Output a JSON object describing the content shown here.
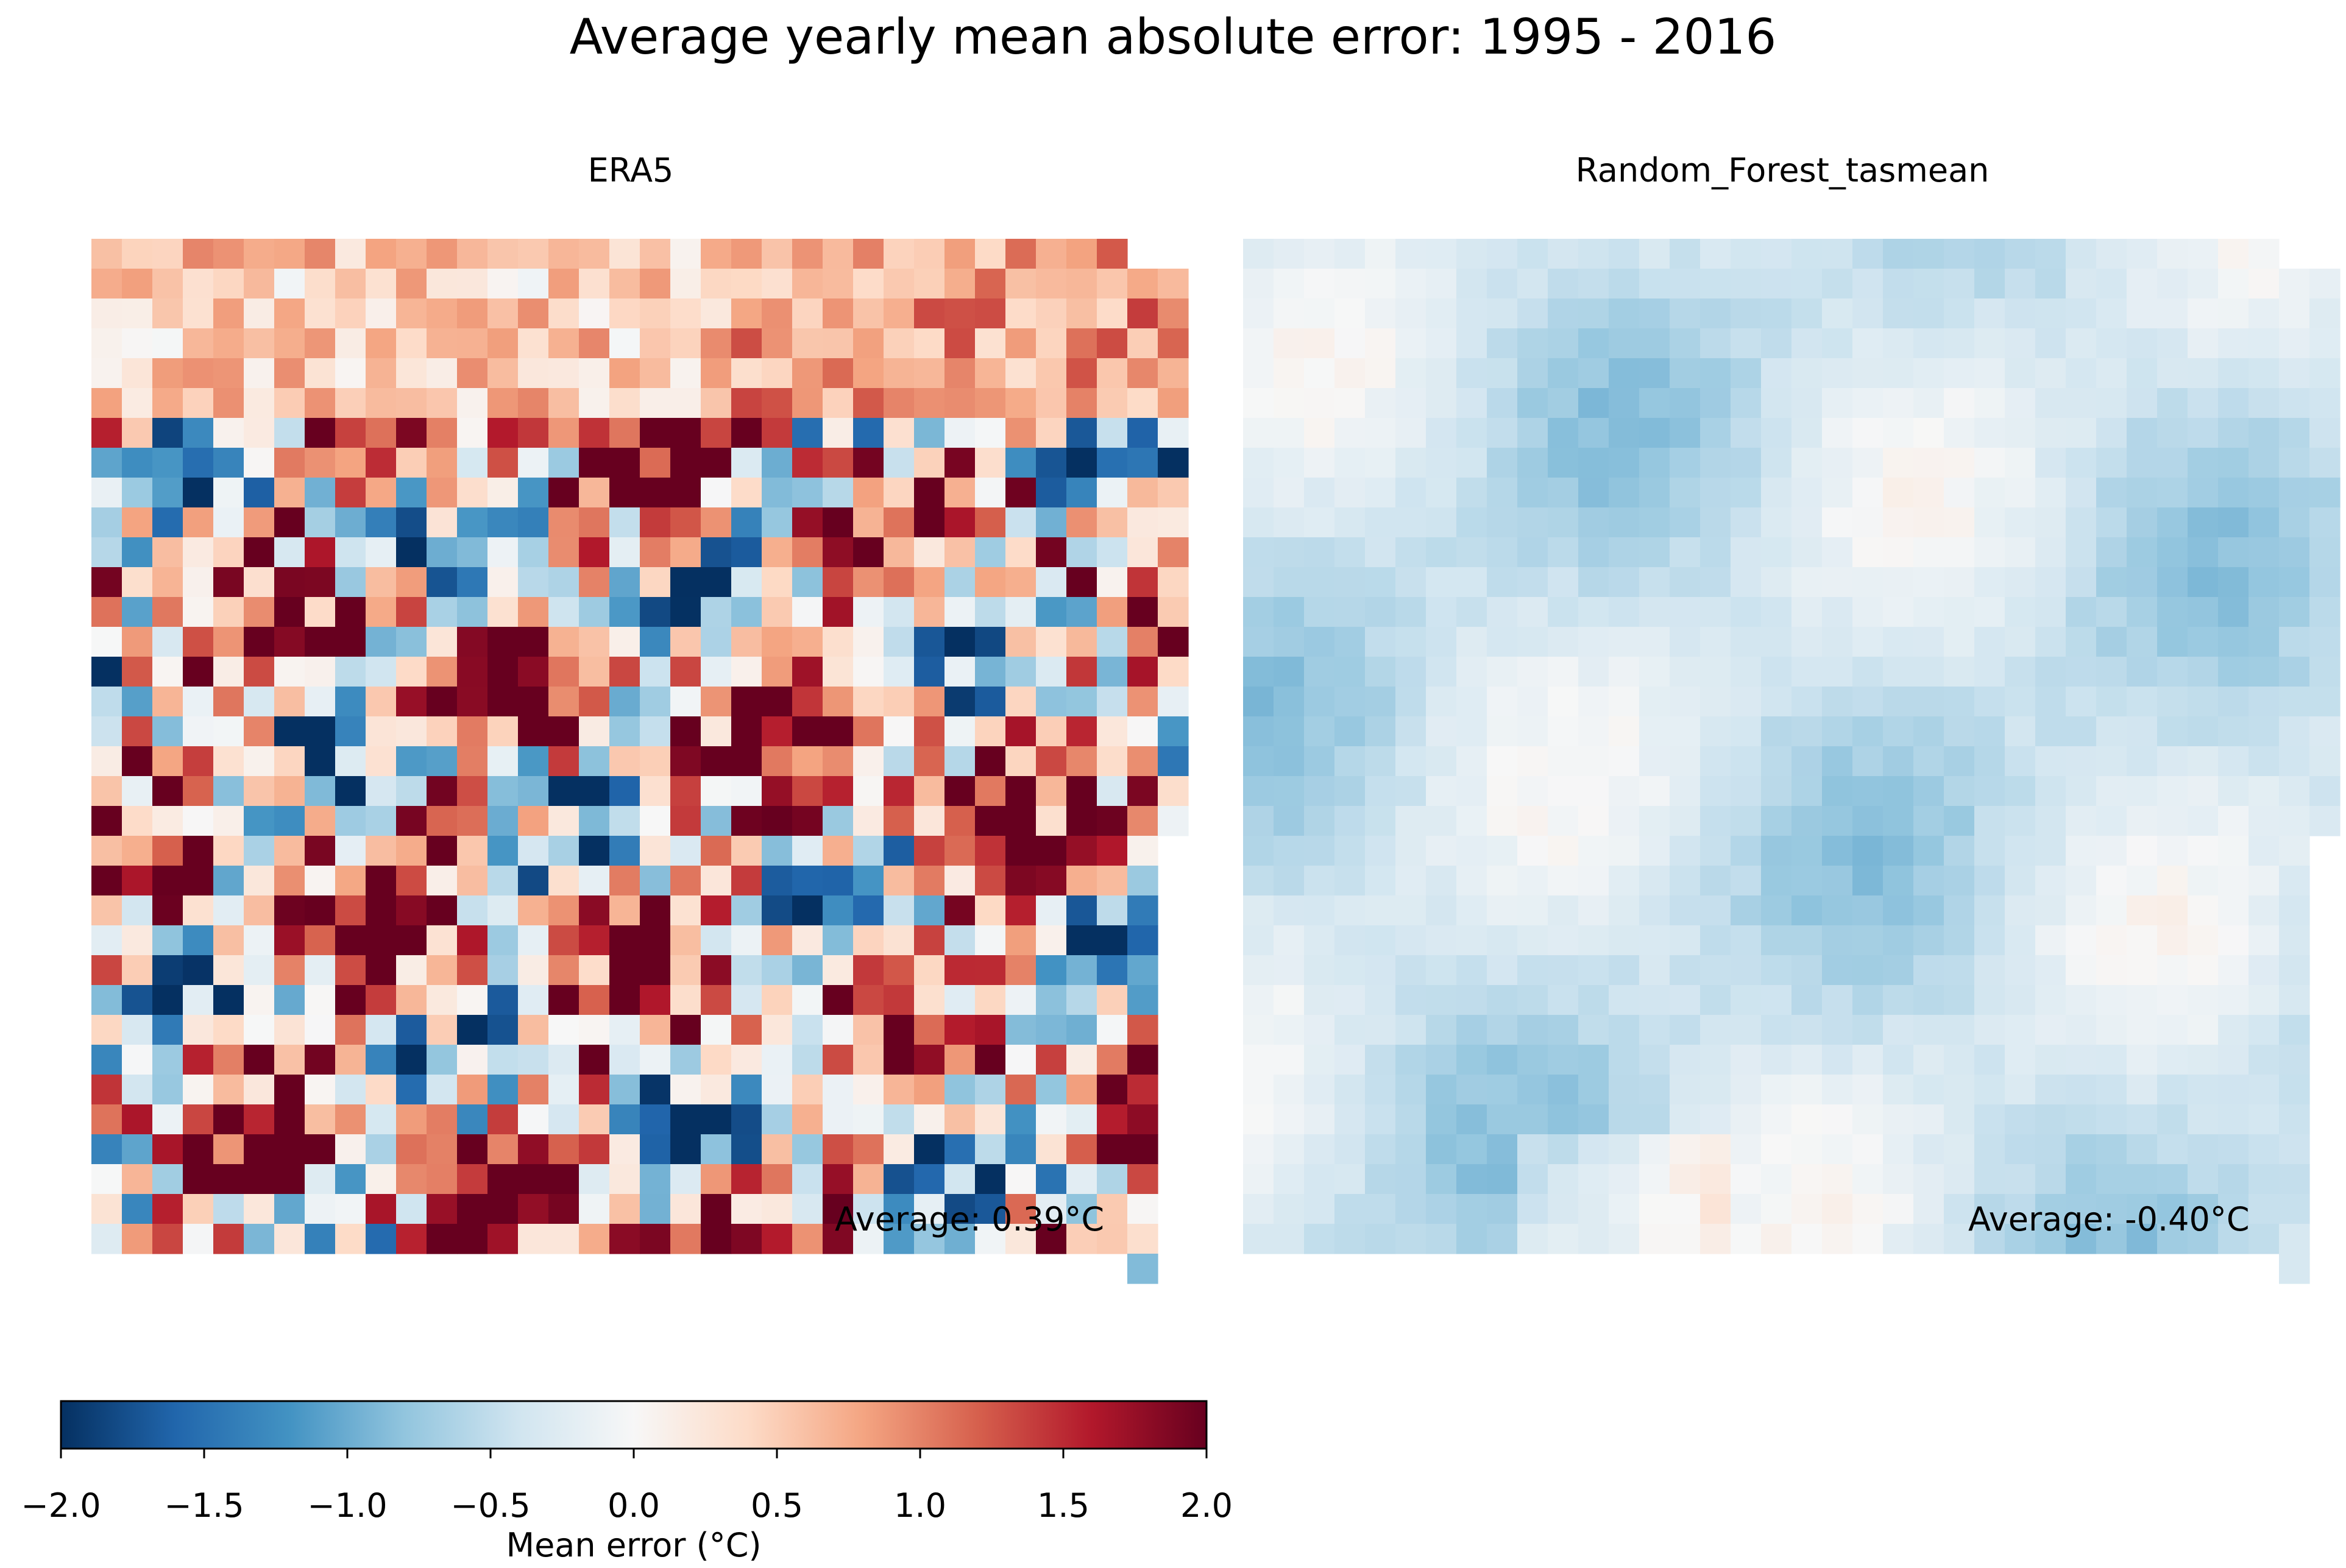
{
  "title": "Average yearly mean absolute error: 1995 - 2016",
  "colors": {
    "scale": [
      "#053061",
      "#2166ac",
      "#4393c3",
      "#92c5de",
      "#d1e5f0",
      "#f7f7f7",
      "#fddbc7",
      "#f4a582",
      "#d6604d",
      "#b2182b",
      "#67001f"
    ]
  },
  "colorbar": {
    "label": "Mean error (°C)",
    "vmin": -2.0,
    "vmax": 2.0,
    "ticks": [
      "−2.0",
      "−1.5",
      "−1.0",
      "−0.5",
      "0.0",
      "0.5",
      "1.0",
      "1.5",
      "2.0"
    ]
  },
  "chart_data": [
    {
      "type": "heatmap",
      "title": "ERA5",
      "annotation": "Average: 0.39°C",
      "grid_rows": 35,
      "grid_cols": 36,
      "style": "noisy",
      "mean": 0.39,
      "range": [
        -2.0,
        2.0
      ]
    },
    {
      "type": "heatmap",
      "title": "Random_Forest_tasmean",
      "annotation": "Average: -0.40°C",
      "grid_rows": 35,
      "grid_cols": 36,
      "style": "smooth",
      "mean": -0.4,
      "range": [
        -1.2,
        0.4
      ]
    }
  ]
}
